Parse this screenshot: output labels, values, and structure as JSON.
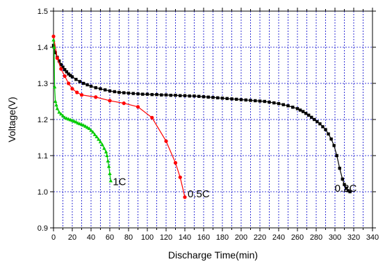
{
  "chart_data": {
    "type": "line",
    "title": "",
    "xlabel": "Discharge Time(min)",
    "ylabel": "Voltage(V)",
    "xlim": [
      0,
      340
    ],
    "ylim": [
      0.9,
      1.5
    ],
    "xticks": [
      0,
      10,
      20,
      30,
      40,
      50,
      60,
      70,
      80,
      90,
      100,
      110,
      120,
      130,
      140,
      150,
      160,
      170,
      180,
      190,
      200,
      210,
      220,
      230,
      240,
      250,
      260,
      270,
      280,
      290,
      300,
      310,
      320,
      330,
      340
    ],
    "xtick_labels": [
      "0",
      "",
      "20",
      "",
      "40",
      "",
      "60",
      "",
      "80",
      "",
      "100",
      "",
      "120",
      "",
      "140",
      "",
      "160",
      "",
      "180",
      "",
      "200",
      "",
      "220",
      "",
      "240",
      "",
      "260",
      "",
      "280",
      "",
      "300",
      "",
      "320",
      "",
      "340"
    ],
    "yticks": [
      0.9,
      1.0,
      1.1,
      1.2,
      1.3,
      1.4,
      1.5
    ],
    "ytick_labels": [
      "0.9",
      "1.0",
      "1.1",
      "1.2",
      "1.3",
      "1.4",
      "1.5"
    ],
    "grid": true,
    "series": [
      {
        "name": "0.2C",
        "color": "#000000",
        "marker": "square",
        "x": [
          0,
          2,
          4,
          6,
          8,
          10,
          12,
          14,
          16,
          18,
          20,
          24,
          28,
          32,
          36,
          40,
          45,
          50,
          55,
          60,
          65,
          70,
          75,
          80,
          85,
          90,
          95,
          100,
          105,
          110,
          115,
          120,
          125,
          130,
          135,
          140,
          145,
          150,
          155,
          160,
          165,
          170,
          175,
          180,
          185,
          190,
          195,
          200,
          205,
          210,
          215,
          220,
          225,
          230,
          235,
          240,
          245,
          250,
          255,
          260,
          263,
          266,
          269,
          272,
          275,
          278,
          281,
          284,
          287,
          290,
          293,
          296,
          299,
          302,
          305,
          308,
          310,
          312,
          314,
          316
        ],
        "y": [
          1.405,
          1.385,
          1.372,
          1.362,
          1.352,
          1.345,
          1.338,
          1.332,
          1.326,
          1.322,
          1.318,
          1.311,
          1.305,
          1.3,
          1.296,
          1.292,
          1.288,
          1.285,
          1.282,
          1.279,
          1.277,
          1.275,
          1.274,
          1.273,
          1.272,
          1.271,
          1.27,
          1.27,
          1.269,
          1.269,
          1.268,
          1.268,
          1.267,
          1.267,
          1.266,
          1.266,
          1.265,
          1.265,
          1.264,
          1.263,
          1.262,
          1.261,
          1.26,
          1.259,
          1.258,
          1.257,
          1.256,
          1.255,
          1.254,
          1.253,
          1.252,
          1.251,
          1.25,
          1.248,
          1.246,
          1.244,
          1.241,
          1.238,
          1.234,
          1.23,
          1.226,
          1.222,
          1.217,
          1.212,
          1.206,
          1.2,
          1.194,
          1.188,
          1.18,
          1.172,
          1.16,
          1.146,
          1.128,
          1.1,
          1.065,
          1.035,
          1.02,
          1.01,
          1.003,
          1.0
        ],
        "label_text": "0.2C"
      },
      {
        "name": "0.5C",
        "color": "#ff0000",
        "marker": "circle",
        "x": [
          0,
          4,
          8,
          12,
          16,
          20,
          25,
          30,
          45,
          60,
          75,
          90,
          105,
          120,
          130,
          135,
          140
        ],
        "y": [
          1.43,
          1.37,
          1.34,
          1.32,
          1.3,
          1.285,
          1.275,
          1.268,
          1.262,
          1.252,
          1.245,
          1.235,
          1.205,
          1.14,
          1.08,
          1.04,
          0.985
        ],
        "label_text": "0.5C"
      },
      {
        "name": "1C",
        "color": "#00cc00",
        "marker": "triangle",
        "x": [
          0,
          0.6,
          1.2,
          2,
          3,
          4,
          6,
          8,
          10,
          12,
          14,
          16,
          18,
          20,
          22,
          24,
          26,
          28,
          30,
          32,
          34,
          36,
          38,
          40,
          42,
          44,
          46,
          48,
          50,
          52,
          54,
          56,
          57,
          58,
          59,
          60,
          61
        ],
        "y": [
          1.42,
          1.4,
          1.29,
          1.25,
          1.24,
          1.23,
          1.22,
          1.215,
          1.21,
          1.205,
          1.203,
          1.201,
          1.199,
          1.197,
          1.195,
          1.193,
          1.19,
          1.188,
          1.186,
          1.184,
          1.181,
          1.178,
          1.175,
          1.17,
          1.165,
          1.158,
          1.152,
          1.145,
          1.138,
          1.13,
          1.12,
          1.11,
          1.1,
          1.085,
          1.07,
          1.05,
          1.03
        ],
        "label_text": "1C"
      }
    ]
  }
}
